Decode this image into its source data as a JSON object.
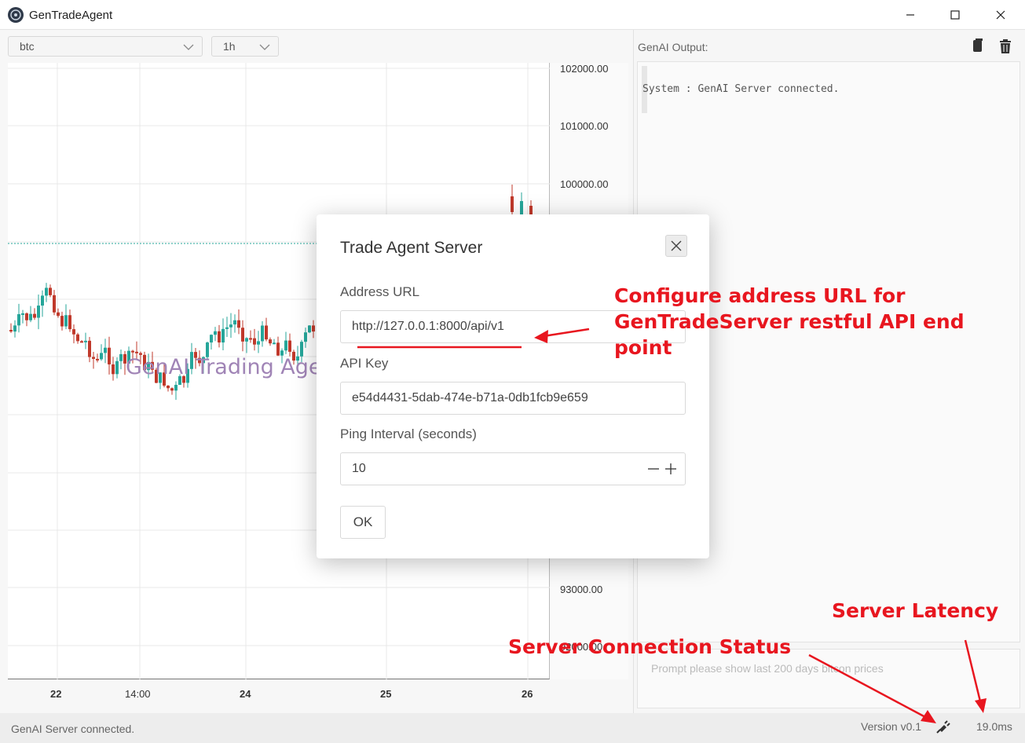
{
  "window": {
    "title": "GenTradeAgent"
  },
  "toolbar": {
    "symbol": "btc",
    "interval": "1h"
  },
  "chart": {
    "price_ticks": [
      "102000.00",
      "101000.00",
      "100000.00",
      "93000.00",
      "92000.00"
    ],
    "time_ticks": [
      "22",
      "14:00",
      "24",
      "25",
      "26"
    ],
    "watermark": "GenAI Trading Age"
  },
  "output": {
    "label": "GenAI Output:",
    "lines": [
      "System : GenAI Server connected."
    ],
    "prompt_placeholder": "Prompt please show last 200 days bitcon prices"
  },
  "status": {
    "message": "GenAI Server connected.",
    "version": "Version v0.1",
    "latency": "19.0ms"
  },
  "dialog": {
    "title": "Trade Agent Server",
    "address_label": "Address URL",
    "address_value": "http://127.0.0.1:8000/api/v1",
    "apikey_label": "API Key",
    "apikey_value": "e54d4431-5dab-474e-b71a-0db1fcb9e659",
    "ping_label": "Ping Interval (seconds)",
    "ping_value": "10",
    "ok_label": "OK"
  },
  "annotations": {
    "url_note_line1": "Configure address URL for",
    "url_note_line2": "GenTradeServer restful API end",
    "url_note_line3": "point",
    "latency_note": "Server Latency",
    "connection_note": "Server Connection Status"
  },
  "colors": {
    "annotation": "#e8161f",
    "bull": "#26a69a",
    "bear": "#c0392b"
  }
}
